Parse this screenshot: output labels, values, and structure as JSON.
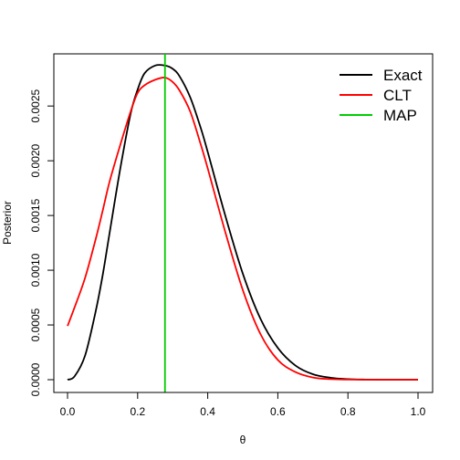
{
  "chart_data": {
    "type": "line",
    "title": "",
    "xlabel": "θ",
    "ylabel": "Posterior",
    "xlim": [
      0.0,
      1.0
    ],
    "ylim": [
      0.0,
      0.00286
    ],
    "x_ticks": [
      "0.0",
      "0.2",
      "0.4",
      "0.6",
      "0.8",
      "1.0"
    ],
    "y_ticks": [
      "0.0000",
      "0.0005",
      "0.0010",
      "0.0015",
      "0.0020",
      "0.0025"
    ],
    "grid": false,
    "legend_position": "top-right",
    "series": [
      {
        "name": "Exact",
        "color": "#000000",
        "x": [
          0.0,
          0.02,
          0.05,
          0.08,
          0.1,
          0.12,
          0.15,
          0.18,
          0.2,
          0.22,
          0.25,
          0.278,
          0.3,
          0.32,
          0.35,
          0.38,
          0.4,
          0.45,
          0.5,
          0.55,
          0.6,
          0.65,
          0.7,
          0.75,
          0.8,
          0.85,
          0.9,
          0.95,
          1.0
        ],
        "y": [
          0.0,
          3e-05,
          0.00022,
          0.00062,
          0.00095,
          0.00134,
          0.00192,
          0.00243,
          0.00265,
          0.0028,
          0.00287,
          0.00287,
          0.00284,
          0.00277,
          0.00258,
          0.0023,
          0.00208,
          0.0015,
          0.00097,
          0.00056,
          0.00029,
          0.00013,
          5e-05,
          1.8e-05,
          5e-06,
          1e-06,
          0.0,
          0.0,
          0.0
        ]
      },
      {
        "name": "CLT",
        "color": "#ff0000",
        "x": [
          0.0,
          0.02,
          0.05,
          0.08,
          0.1,
          0.12,
          0.15,
          0.18,
          0.2,
          0.22,
          0.25,
          0.278,
          0.3,
          0.32,
          0.35,
          0.38,
          0.4,
          0.45,
          0.5,
          0.55,
          0.6,
          0.65,
          0.7,
          0.75,
          0.8,
          0.85,
          0.9,
          0.95,
          1.0
        ],
        "y": [
          0.00049,
          0.00066,
          0.00093,
          0.00128,
          0.00154,
          0.00181,
          0.00214,
          0.00245,
          0.00262,
          0.00269,
          0.00274,
          0.00276,
          0.00272,
          0.00264,
          0.00245,
          0.00215,
          0.00193,
          0.00135,
          0.00082,
          0.00042,
          0.00018,
          7e-05,
          2e-05,
          5e-06,
          1e-06,
          0.0,
          0.0,
          0.0,
          0.0
        ]
      },
      {
        "name": "MAP",
        "color": "#00cd00",
        "x": [
          0.278
        ],
        "type": "vline"
      }
    ]
  }
}
